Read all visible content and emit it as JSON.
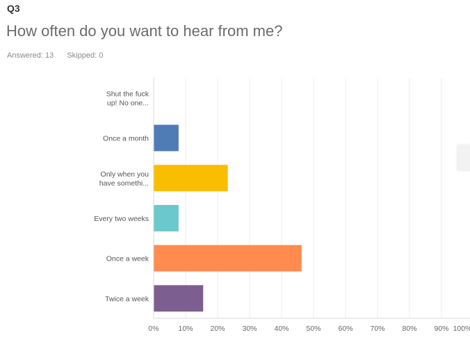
{
  "question": {
    "number": "Q3",
    "title": "How often do you want to hear from me?",
    "answered": "Answered: 13",
    "skipped": "Skipped: 0"
  },
  "chart_data": {
    "type": "bar",
    "orientation": "horizontal",
    "categories": [
      [
        "Shut the fuck",
        "up! No one..."
      ],
      [
        "Once a month"
      ],
      [
        "Only when you",
        "have somethi..."
      ],
      [
        "Every two weeks"
      ],
      [
        "Once a week"
      ],
      [
        "Twice a week"
      ]
    ],
    "values": [
      0,
      7.69,
      23.08,
      7.69,
      46.15,
      15.38
    ],
    "colors": [
      "#cccccc",
      "#507cb6",
      "#f9be00",
      "#6bc8cd",
      "#ff8b4f",
      "#7d5e90"
    ],
    "xlim": [
      0,
      100
    ],
    "ticks": [
      "0%",
      "10%",
      "20%",
      "30%",
      "40%",
      "50%",
      "60%",
      "70%",
      "80%",
      "90%",
      "100%"
    ],
    "grid": true,
    "gridColor": "#ececec",
    "axisColor": "#d9d9d9"
  }
}
